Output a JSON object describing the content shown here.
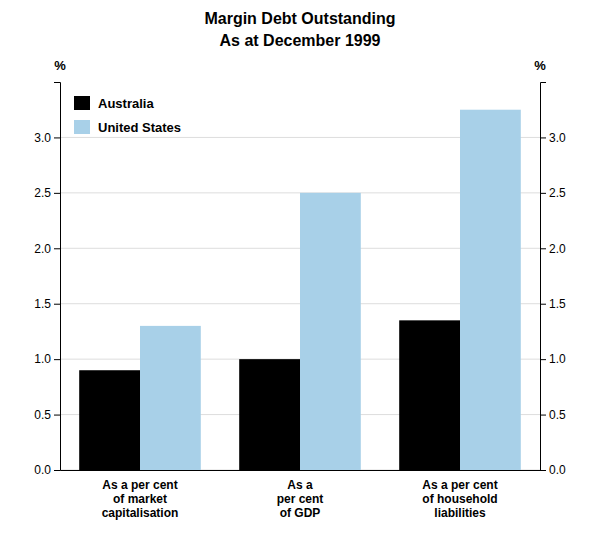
{
  "chart_data": {
    "type": "bar",
    "title": "Margin Debt Outstanding",
    "subtitle": "As at December 1999",
    "categories": [
      "As a per cent\nof market\ncapitalisation",
      "As a\nper cent\nof GDP",
      "As a per cent\nof household\nliabilities"
    ],
    "series": [
      {
        "name": "Australia",
        "color": "#000000",
        "values": [
          0.9,
          1.0,
          1.35
        ]
      },
      {
        "name": "United States",
        "color": "#a8d0e8",
        "values": [
          1.3,
          2.5,
          3.25
        ]
      }
    ],
    "ylabel": "%",
    "y2label": "%",
    "ylim": [
      0,
      3.5
    ],
    "yticks": [
      {
        "value": 0,
        "label": "0.0"
      },
      0.5,
      {
        "value": 1,
        "label": "1.0"
      },
      1.5,
      {
        "value": 2,
        "label": "2.0"
      },
      2.5,
      {
        "value": 3,
        "label": "3.0"
      }
    ],
    "y2lim": [
      0,
      3.5
    ],
    "y2ticks": [
      {
        "value": 0,
        "label": "0.0"
      },
      0.5,
      {
        "value": 1,
        "label": "1.0"
      },
      1.5,
      {
        "value": 2,
        "label": "2.0"
      },
      2.5,
      {
        "value": 3,
        "label": "3.0"
      }
    ],
    "grid": true,
    "legend": "upper left"
  }
}
